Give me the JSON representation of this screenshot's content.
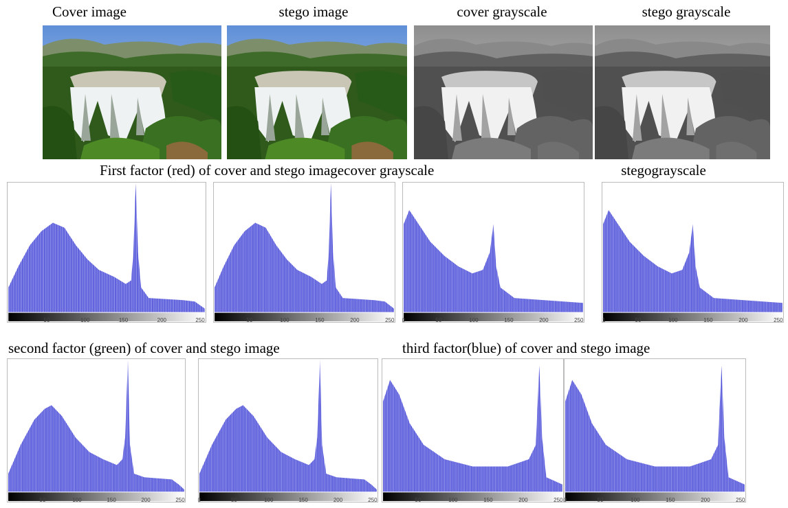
{
  "row1": {
    "labels": [
      "Cover image",
      "stego image",
      "cover grayscale",
      "stego grayscale"
    ]
  },
  "row2": {
    "title": "First factor (red) of cover and stego image",
    "labels": [
      "cover grayscale",
      "stegograyscale"
    ],
    "histograms": [
      {
        "ticks": [
          "50",
          "100",
          "150",
          "200",
          "250"
        ]
      },
      {
        "ticks": [
          "50",
          "100",
          "150",
          "200",
          "250"
        ]
      },
      {
        "ticks": [
          "0",
          "50",
          "100",
          "150",
          "200",
          "250"
        ]
      },
      {
        "ticks": [
          "1",
          "50",
          "100",
          "150",
          "200",
          "250"
        ]
      }
    ]
  },
  "row3": {
    "labels": [
      "second factor (green) of cover and stego image",
      "third factor(blue) of cover and stego image"
    ],
    "histograms": [
      {
        "ticks": [
          "50",
          "100",
          "150",
          "200",
          "250"
        ]
      },
      {
        "ticks": [
          "0",
          "50",
          "100",
          "150",
          "200",
          "250"
        ]
      },
      {
        "ticks": [
          "50",
          "100",
          "150",
          "200",
          "250"
        ]
      },
      {
        "ticks": [
          "0",
          "50",
          "100",
          "150",
          "200",
          "250"
        ]
      }
    ]
  }
}
